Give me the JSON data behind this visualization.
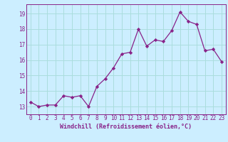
{
  "x": [
    0,
    1,
    2,
    3,
    4,
    5,
    6,
    7,
    8,
    9,
    10,
    11,
    12,
    13,
    14,
    15,
    16,
    17,
    18,
    19,
    20,
    21,
    22,
    23
  ],
  "y": [
    13.3,
    13.0,
    13.1,
    13.1,
    13.7,
    13.6,
    13.7,
    13.0,
    14.3,
    14.8,
    15.5,
    16.4,
    16.5,
    18.0,
    16.9,
    17.3,
    17.2,
    17.9,
    19.1,
    18.5,
    18.3,
    16.6,
    16.7,
    15.9
  ],
  "line_color": "#882288",
  "marker": "D",
  "marker_size": 2.2,
  "bg_color": "#cceeff",
  "grid_color": "#aadddd",
  "xlabel": "Windchill (Refroidissement éolien,°C)",
  "xlabel_color": "#882288",
  "tick_color": "#882288",
  "ylim": [
    12.5,
    19.6
  ],
  "xlim": [
    -0.5,
    23.5
  ],
  "yticks": [
    13,
    14,
    15,
    16,
    17,
    18,
    19
  ],
  "xticks": [
    0,
    1,
    2,
    3,
    4,
    5,
    6,
    7,
    8,
    9,
    10,
    11,
    12,
    13,
    14,
    15,
    16,
    17,
    18,
    19,
    20,
    21,
    22,
    23
  ],
  "tick_fontsize": 5.5,
  "xlabel_fontsize": 6.0,
  "linewidth": 0.9
}
